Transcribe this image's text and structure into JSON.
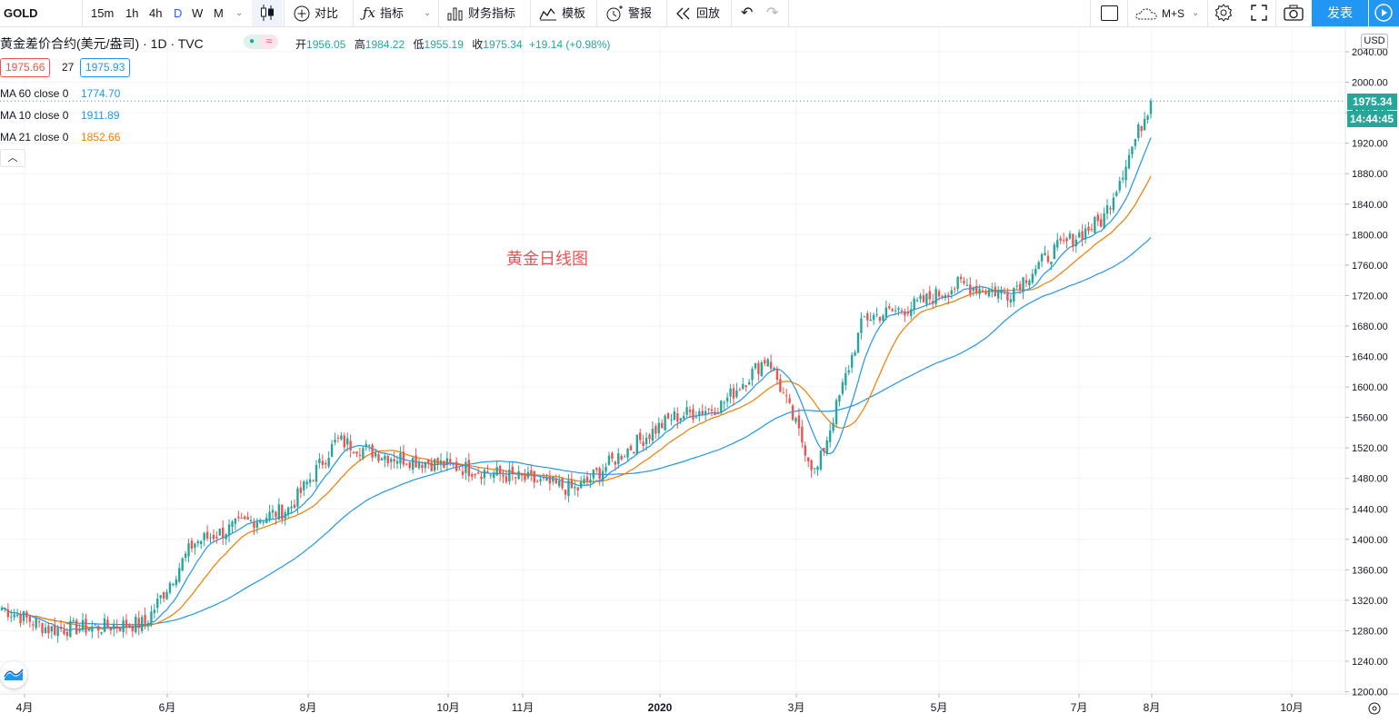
{
  "toolbar": {
    "symbol": "GOLD",
    "intervals": [
      "15m",
      "1h",
      "4h",
      "D",
      "W",
      "M"
    ],
    "active_interval": "D",
    "compare_label": "对比",
    "indicators_label": "指标",
    "financials_label": "财务指标",
    "templates_label": "模板",
    "alert_label": "警报",
    "replay_label": "回放",
    "layout_label": "M+S",
    "publish_label": "发表"
  },
  "legend": {
    "title": "黄金差价合约(美元/盎司) · 1D · TVC",
    "open_label": "开",
    "open": "1956.05",
    "high_label": "高",
    "high": "1984.22",
    "low_label": "低",
    "low": "1955.19",
    "close_label": "收",
    "close": "1975.34",
    "change": "+19.14 (+0.98%)",
    "sell_price": "1975.66",
    "spread": "27",
    "buy_price": "1975.93",
    "ma": [
      {
        "label": "MA 60 close 0",
        "value": "1774.70",
        "color": "#2196f3"
      },
      {
        "label": "MA 10 close 0",
        "value": "1911.89",
        "color": "#2196f3"
      },
      {
        "label": "MA 21 close 0",
        "value": "1852.66",
        "color": "#f57c00"
      }
    ]
  },
  "chart_note": "黄金日线图",
  "price_scale": {
    "currency": "USD",
    "current_price": "1975.34",
    "countdown": "14:44:45",
    "ticks": [
      "2040.00",
      "2000.00",
      "1960.00",
      "1920.00",
      "1880.00",
      "1840.00",
      "1800.00",
      "1760.00",
      "1720.00",
      "1680.00",
      "1640.00",
      "1600.00",
      "1560.00",
      "1520.00",
      "1480.00",
      "1440.00",
      "1400.00",
      "1360.00",
      "1320.00",
      "1280.00",
      "1240.00",
      "1200.00"
    ]
  },
  "time_scale": {
    "ticks": [
      "4月",
      "6月",
      "8月",
      "10月",
      "11月",
      "2020",
      "3月",
      "5月",
      "7月",
      "8月",
      "10月"
    ]
  },
  "colors": {
    "up": "#26a69a",
    "down": "#ef5350",
    "ma60": "#2196f3",
    "ma10": "#2196f3",
    "ma21": "#f57c00",
    "grid": "#f0f3fa"
  },
  "chart_data": {
    "type": "candlestick",
    "symbol": "GOLD",
    "timeframe": "1D",
    "ylim": [
      1200,
      2040
    ],
    "x": [
      "2019-03-25",
      "2019-04-15",
      "2019-05-06",
      "2019-05-27",
      "2019-06-17",
      "2019-07-08",
      "2019-07-29",
      "2019-08-19",
      "2019-09-09",
      "2019-09-30",
      "2019-10-21",
      "2019-11-11",
      "2019-12-02",
      "2019-12-23",
      "2020-01-13",
      "2020-02-03",
      "2020-02-24",
      "2020-03-16",
      "2020-04-06",
      "2020-04-27",
      "2020-05-18",
      "2020-06-08",
      "2020-06-29",
      "2020-07-20",
      "2020-07-31"
    ],
    "close": [
      1310,
      1282,
      1285,
      1290,
      1395,
      1420,
      1440,
      1530,
      1510,
      1500,
      1490,
      1478,
      1465,
      1515,
      1560,
      1575,
      1640,
      1485,
      1690,
      1705,
      1735,
      1722,
      1780,
      1820,
      1975.34
    ],
    "series": [
      {
        "name": "MA 60 close 0",
        "last": 1774.7
      },
      {
        "name": "MA 10 close 0",
        "last": 1911.89
      },
      {
        "name": "MA 21 close 0",
        "last": 1852.66
      }
    ]
  }
}
